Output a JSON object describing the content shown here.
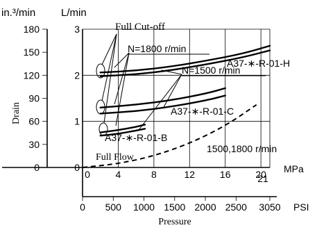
{
  "chart_data": {
    "type": "line",
    "title": "",
    "xlabel": "Pressure",
    "ylabel": "Drain",
    "x_unit_mpa": "MPa",
    "x_unit_psi": "PSI",
    "y_unit_in3": "in.³/min",
    "y_unit_l": "L/min",
    "x_ticks_mpa": [
      "0",
      "4",
      "8",
      "12",
      "16",
      "20"
    ],
    "x_extra_tick_mpa": "21",
    "x_ticks_psi": [
      "0",
      "500",
      "1000",
      "1500",
      "2000",
      "2500",
      "3050"
    ],
    "y_ticks_l": [
      "0",
      "1",
      "2",
      "3"
    ],
    "y_ticks_in3": [
      "0",
      "30",
      "60",
      "90",
      "120",
      "150",
      "180"
    ],
    "xlim": [
      0,
      21
    ],
    "ylim": [
      0,
      3
    ],
    "series": [
      {
        "x": [
          2,
          6,
          10,
          14,
          18,
          21
        ],
        "y": [
          2.06,
          2.1,
          2.19,
          2.32,
          2.47,
          2.64
        ],
        "style": "solid"
      },
      {
        "x": [
          2,
          6,
          10,
          14,
          18,
          21
        ],
        "y": [
          1.98,
          2.02,
          2.11,
          2.24,
          2.39,
          2.54
        ],
        "style": "solid"
      },
      {
        "x": [
          2,
          6,
          10,
          14,
          16
        ],
        "y": [
          1.3,
          1.36,
          1.46,
          1.61,
          1.72
        ],
        "style": "solid"
      },
      {
        "x": [
          2,
          6,
          10,
          14,
          16
        ],
        "y": [
          1.17,
          1.22,
          1.32,
          1.46,
          1.56
        ],
        "style": "solid"
      },
      {
        "x": [
          2,
          4,
          6,
          7
        ],
        "y": [
          0.76,
          0.81,
          0.88,
          0.93
        ],
        "style": "solid"
      },
      {
        "x": [
          2,
          4,
          6,
          7
        ],
        "y": [
          0.69,
          0.73,
          0.8,
          0.84
        ],
        "style": "solid"
      },
      {
        "x": [
          0,
          4,
          8,
          12,
          16,
          19.5
        ],
        "y": [
          0,
          0.08,
          0.25,
          0.52,
          0.9,
          1.36
        ],
        "style": "dashed"
      }
    ],
    "annotations": {
      "full_cutoff": "Full Cut-off",
      "n1800": "N=1800 r/min",
      "n1500": "N=1500 r/min",
      "label_h": "A37-∗-R-01-H",
      "label_c": "A37-∗-R-01-C",
      "label_b": "A37-∗-R-01-B",
      "full_flow": "Full Flow",
      "speeds": "1500,1800 r/min"
    },
    "grid": true
  }
}
